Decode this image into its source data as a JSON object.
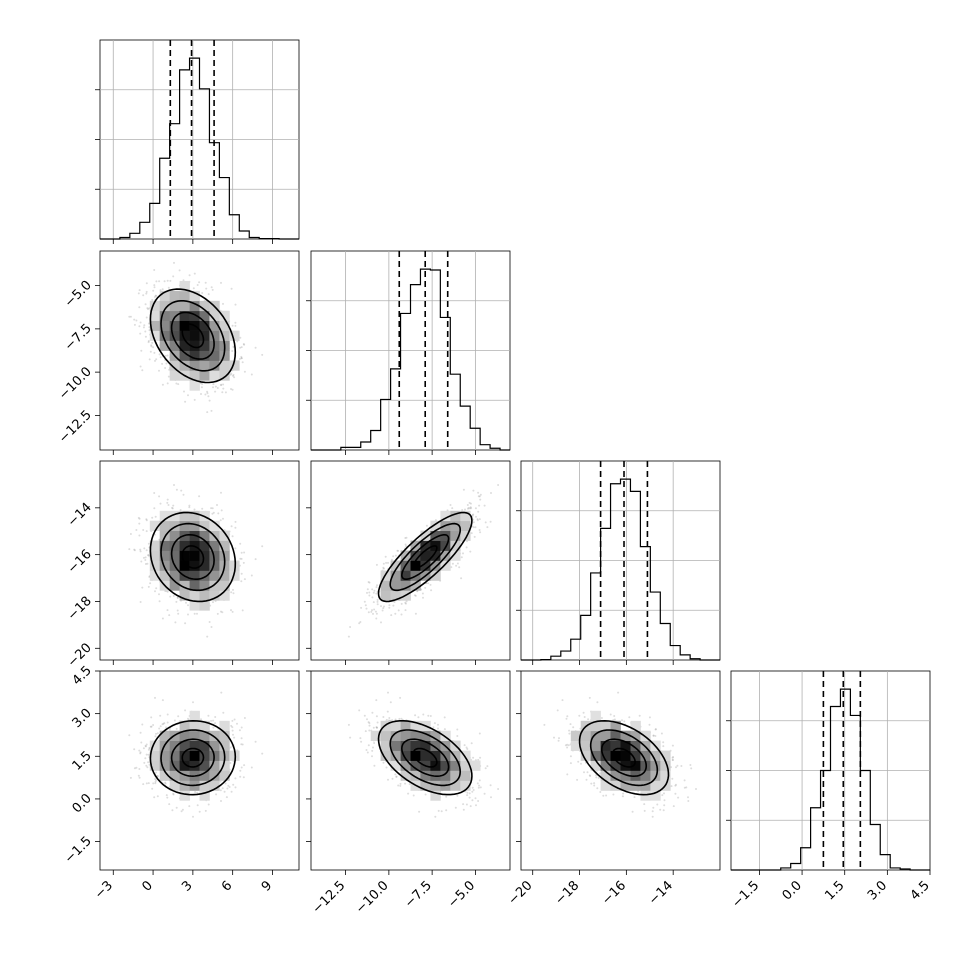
{
  "chart_data": {
    "type": "corner",
    "params": [
      {
        "range": [
          -4,
          11
        ],
        "ticks": [
          -3,
          0,
          3,
          6,
          9
        ],
        "tick_labels": [
          "−3",
          "0",
          "3",
          "6",
          "9"
        ],
        "mean": 3.0,
        "sd": 1.6,
        "quantiles": [
          1.3,
          2.9,
          4.6
        ]
      },
      {
        "range": [
          -14.5,
          -3.0
        ],
        "ticks": [
          -12.5,
          -10.0,
          -7.5,
          -5.0
        ],
        "tick_labels": [
          "−12.5",
          "−10.0",
          "−7.5",
          "−5.0"
        ],
        "mean": -7.9,
        "sd": 1.35,
        "quantiles": [
          -9.4,
          -7.9,
          -6.6
        ]
      },
      {
        "range": [
          -20.5,
          -12.0
        ],
        "ticks": [
          -20,
          -18,
          -16,
          -14
        ],
        "tick_labels": [
          "−20",
          "−18",
          "−16",
          "−14"
        ],
        "mean": -16.1,
        "sd": 0.95,
        "quantiles": [
          -17.1,
          -16.1,
          -15.1
        ]
      },
      {
        "range": [
          -2.5,
          4.5
        ],
        "ticks": [
          -1.5,
          0.0,
          1.5,
          3.0,
          4.5
        ],
        "tick_labels": [
          "−1.5",
          "0.0",
          "1.5",
          "3.0",
          "4.5"
        ],
        "mean": 1.45,
        "sd": 0.65,
        "quantiles": [
          0.75,
          1.45,
          2.05
        ]
      }
    ],
    "correlations": {
      "1-0": -0.35,
      "2-0": -0.15,
      "2-1": 0.82,
      "3-0": 0.02,
      "3-1": -0.5,
      "3-2": -0.45
    },
    "histogram_bins": 20,
    "grid": true,
    "colors": {
      "points": "#9e9e9e",
      "density": "#000000",
      "lines": "#000000"
    }
  }
}
